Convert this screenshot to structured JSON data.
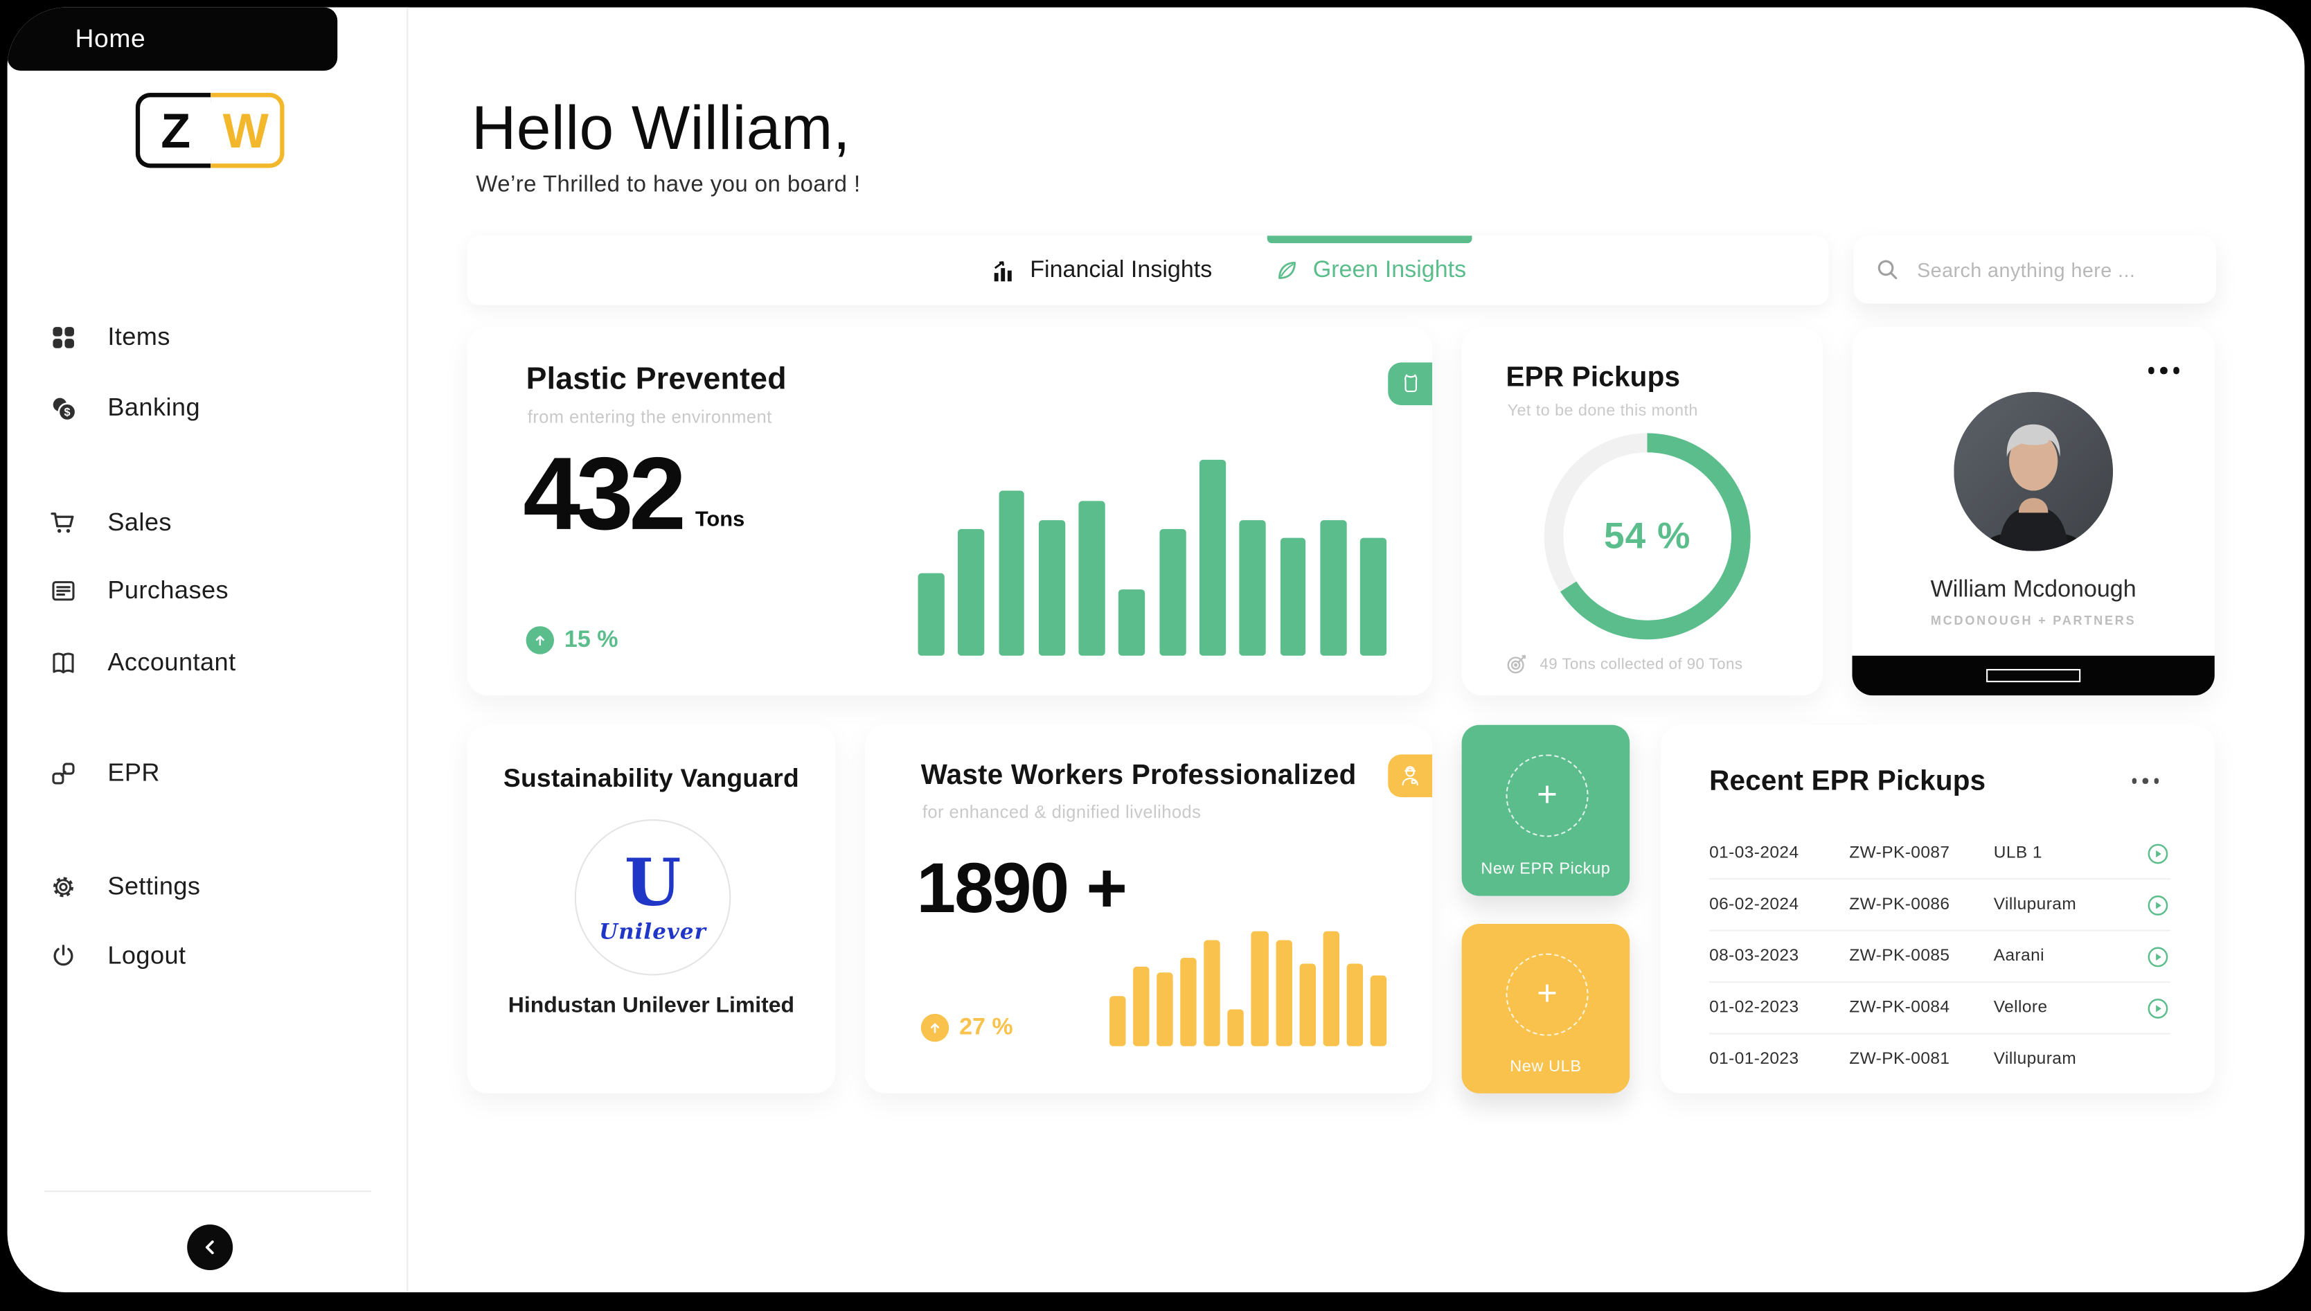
{
  "colors": {
    "green": "#5BBD8B",
    "yellow": "#F3B72C",
    "yellow_chart": "#F8C24D",
    "black": "#0B0B0B",
    "unilever_blue": "#1F36C7",
    "subtitle_gray": "#C9C9C9"
  },
  "sidebar": {
    "logo": {
      "letter_left": "Z",
      "letter_right": "W"
    },
    "items": [
      {
        "label": "Home",
        "icon": "home",
        "active": true
      },
      {
        "label": "Items",
        "icon": "grid-icon"
      },
      {
        "label": "Banking",
        "icon": "coins-icon"
      },
      {
        "label": "Sales",
        "icon": "cart-icon"
      },
      {
        "label": "Purchases",
        "icon": "receipt-icon"
      },
      {
        "label": "Accountant",
        "icon": "book-icon"
      },
      {
        "label": "EPR",
        "icon": "link-icon"
      },
      {
        "label": "Settings",
        "icon": "gear-icon"
      },
      {
        "label": "Logout",
        "icon": "power-icon"
      }
    ],
    "collapse_icon": "chevron-left"
  },
  "header": {
    "greeting": "Hello William,",
    "welcome": "We’re Thrilled to have you on board !"
  },
  "tabs": [
    {
      "label": "Financial Insights",
      "icon": "bar-chart-icon",
      "active": false
    },
    {
      "label": "Green Insights",
      "icon": "leaf-icon",
      "active": true
    }
  ],
  "search": {
    "placeholder": "Search anything here ..."
  },
  "plastic_card": {
    "title": "Plastic Prevented",
    "subtitle": "from entering the environment",
    "value": "432",
    "unit": "Tons",
    "delta": "15 %",
    "badge_icon": "plastic-bag-icon"
  },
  "epr_card": {
    "title": "EPR Pickups",
    "subtitle": "Yet to be done this month",
    "percent_label": "54 %",
    "visual_percent": 66,
    "footer": "49 Tons collected of 90 Tons",
    "footer_icon": "target-icon"
  },
  "profile_card": {
    "name": "William Mcdonough",
    "org": "MCDONOUGH + PARTNERS",
    "menu_icon": "ellipsis-icon"
  },
  "vanguard_card": {
    "title": "Sustainability Vanguard",
    "logo_letter": "U",
    "logo_word": "Unilever",
    "company": "Hindustan Unilever Limited"
  },
  "workers_card": {
    "title": "Waste Workers Professionalized",
    "subtitle": "for enhanced & dignified livelihods",
    "value": "1890 +",
    "delta": "27 %",
    "badge_icon": "worker-icon"
  },
  "actions": {
    "new_epr": {
      "label": "New EPR Pickup"
    },
    "new_ulb": {
      "label": "New ULB"
    }
  },
  "recent_card": {
    "title": "Recent EPR Pickups",
    "menu_icon": "ellipsis-icon",
    "rows": [
      {
        "date": "01-03-2024",
        "id": "ZW-PK-0087",
        "location": "ULB 1",
        "has_play": true
      },
      {
        "date": "06-02-2024",
        "id": "ZW-PK-0086",
        "location": "Villupuram",
        "has_play": true
      },
      {
        "date": "08-03-2023",
        "id": "ZW-PK-0085",
        "location": "Aarani",
        "has_play": true
      },
      {
        "date": "01-02-2023",
        "id": "ZW-PK-0084",
        "location": "Vellore",
        "has_play": true
      },
      {
        "date": "01-01-2023",
        "id": "ZW-PK-0081",
        "location": "Villupuram",
        "has_play": false
      }
    ]
  },
  "chart_data": [
    {
      "type": "bar",
      "title": "Plastic Prevented (Tons)",
      "values": [
        42,
        65,
        84,
        69,
        79,
        34,
        65,
        100,
        69,
        60,
        69,
        60
      ],
      "color": "#5BBD8B",
      "ylabel": "relative bar height (% of max)"
    },
    {
      "type": "bar",
      "title": "Waste Workers Professionalized",
      "values": [
        43,
        69,
        64,
        77,
        92,
        32,
        100,
        92,
        72,
        100,
        72,
        62
      ],
      "color": "#F8C24D",
      "ylabel": "relative bar height (% of max)"
    },
    {
      "type": "pie",
      "title": "EPR Pickups",
      "percent": 54,
      "label": "54 %",
      "note": "49 Tons collected of 90 Tons"
    }
  ]
}
